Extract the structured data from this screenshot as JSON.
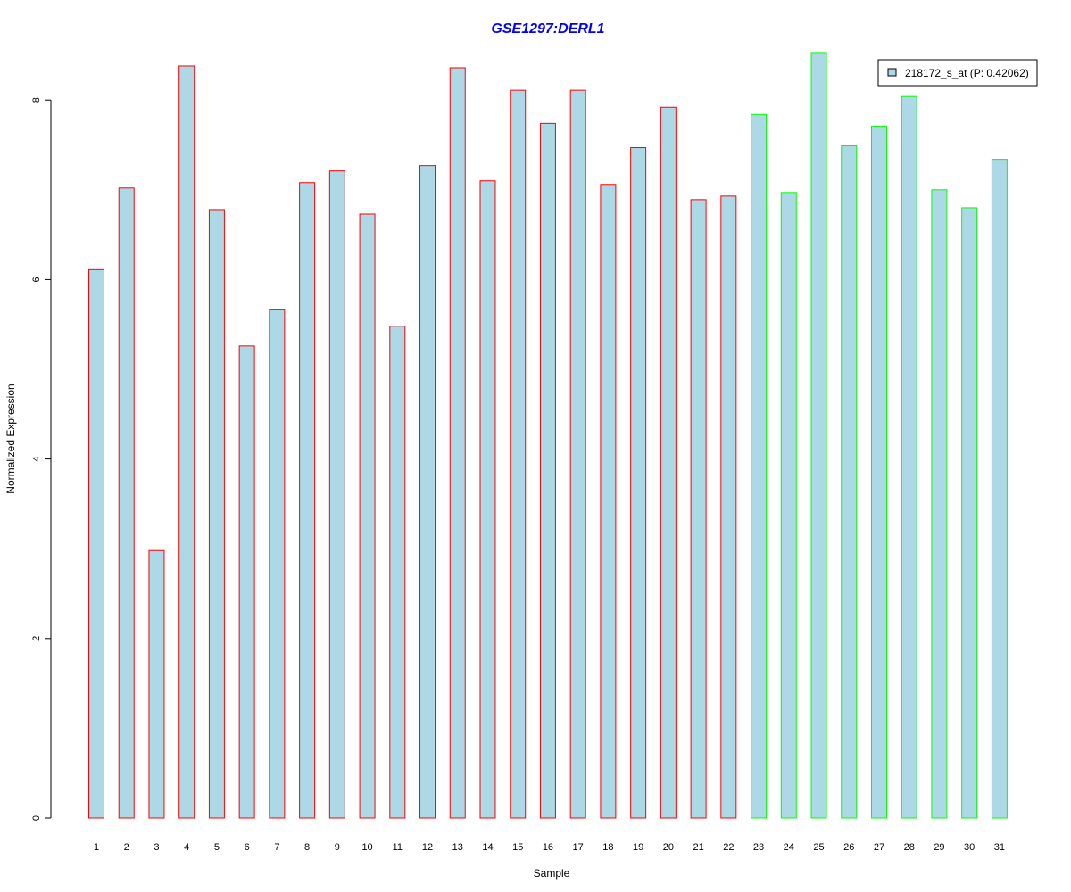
{
  "chart_data": {
    "type": "bar",
    "title": "GSE1297:DERL1",
    "xlabel": "Sample",
    "ylabel": "Normalized Expression",
    "ylim": [
      0,
      8.6
    ],
    "yticks": [
      0,
      2,
      4,
      6,
      8
    ],
    "categories": [
      "1",
      "2",
      "3",
      "4",
      "5",
      "6",
      "7",
      "8",
      "9",
      "10",
      "11",
      "12",
      "13",
      "14",
      "15",
      "16",
      "17",
      "18",
      "19",
      "20",
      "21",
      "22",
      "23",
      "24",
      "25",
      "26",
      "27",
      "28",
      "29",
      "30",
      "31"
    ],
    "values": [
      6.11,
      7.02,
      2.98,
      8.38,
      6.78,
      5.26,
      5.67,
      7.08,
      7.21,
      6.73,
      5.48,
      7.27,
      8.36,
      7.1,
      8.11,
      7.74,
      8.11,
      7.06,
      7.47,
      7.92,
      6.89,
      6.93,
      7.84,
      6.97,
      8.53,
      7.49,
      7.71,
      8.04,
      7.0,
      6.8,
      7.34
    ],
    "groups": [
      "red",
      "red",
      "red",
      "red",
      "red",
      "red",
      "red",
      "red",
      "red",
      "red",
      "red",
      "red",
      "red",
      "red",
      "red",
      "red",
      "red",
      "red",
      "red",
      "red",
      "red",
      "red",
      "green",
      "green",
      "green",
      "green",
      "green",
      "green",
      "green",
      "green",
      "green"
    ],
    "legend": {
      "label": "218172_s_at (P: 0.42062)",
      "position": "top-right"
    },
    "colors": {
      "fill": "#add8e6",
      "red": "#ff0000",
      "green": "#00ff00",
      "title": "#0000ff"
    }
  }
}
